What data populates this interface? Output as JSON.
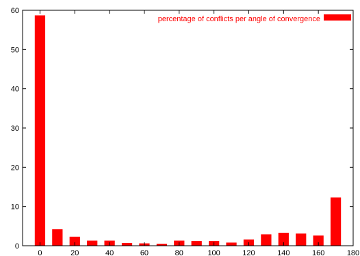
{
  "chart_data": {
    "type": "bar",
    "title": "",
    "xlabel": "",
    "ylabel": "",
    "xlim": [
      -10,
      180
    ],
    "ylim": [
      0,
      60
    ],
    "x_ticks": [
      0,
      20,
      40,
      60,
      80,
      100,
      120,
      140,
      160,
      180
    ],
    "y_ticks": [
      0,
      10,
      20,
      30,
      40,
      50,
      60
    ],
    "grid": false,
    "legend_position": "top-right",
    "bar_width": 3,
    "series": [
      {
        "name": "percentage of conflicts per angle of convergence",
        "color": "#ff0000",
        "x": [
          0,
          10,
          20,
          30,
          40,
          50,
          60,
          70,
          80,
          90,
          100,
          110,
          120,
          130,
          140,
          150,
          160,
          170
        ],
        "values": [
          58.7,
          4.2,
          2.3,
          1.3,
          1.3,
          0.7,
          0.6,
          0.5,
          1.3,
          1.2,
          1.2,
          0.8,
          1.6,
          2.9,
          3.3,
          3.1,
          2.6,
          12.3
        ]
      }
    ]
  }
}
